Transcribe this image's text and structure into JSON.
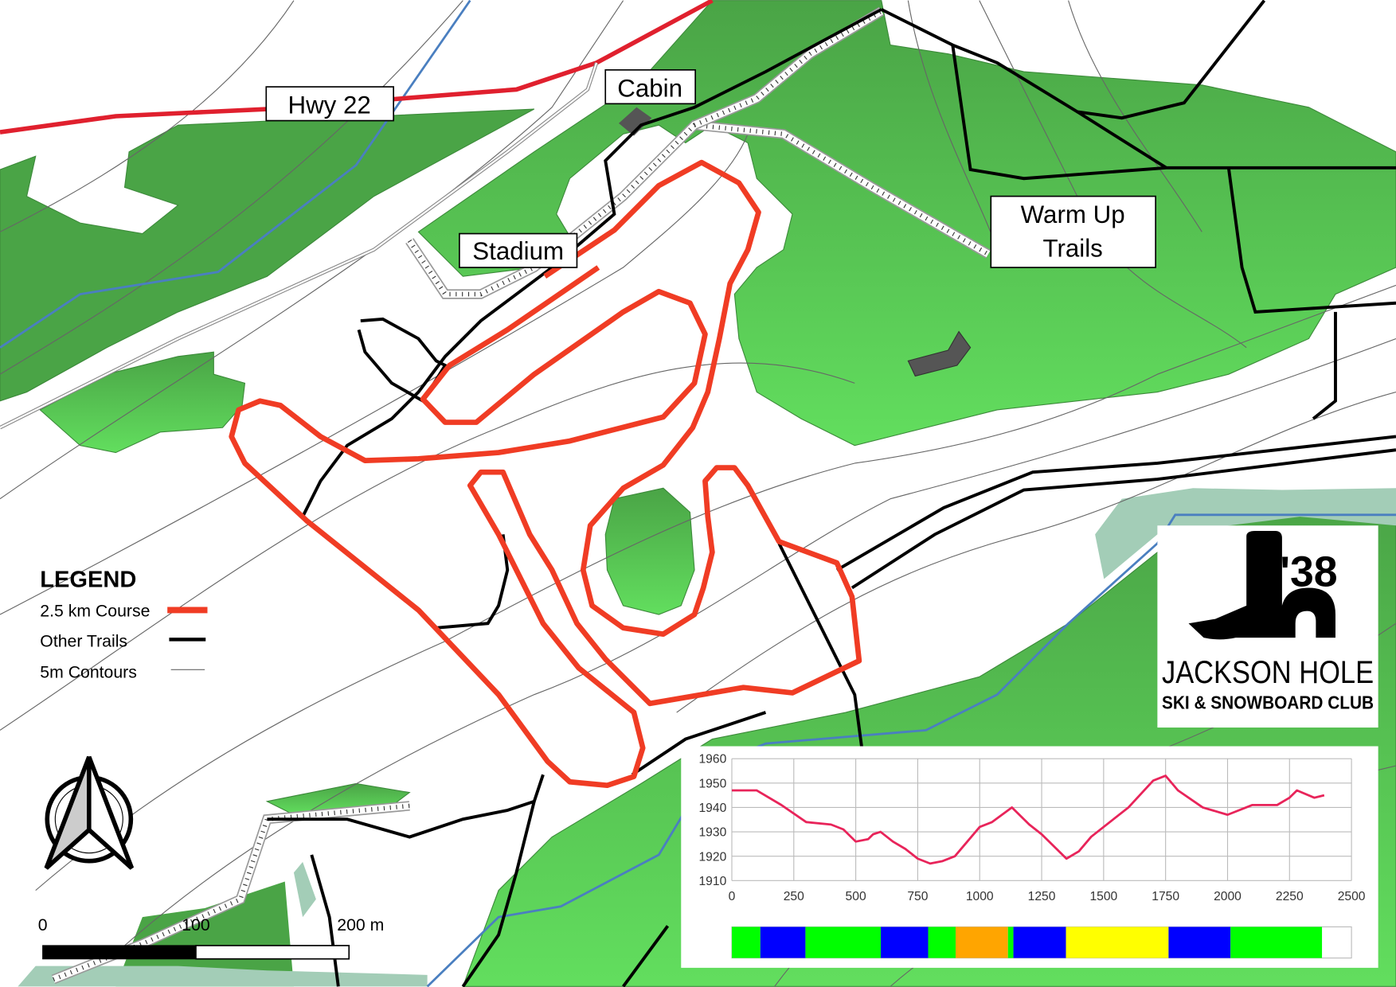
{
  "map": {
    "labels": {
      "hwy": "Hwy 22",
      "cabin": "Cabin",
      "stadium": "Stadium",
      "warmup_line1": "Warm Up",
      "warmup_line2": "Trails"
    },
    "colors": {
      "course": "#f03c24",
      "trails": "#000000",
      "contours": "#666666",
      "highway": "#e0202e",
      "stream": "#4a7fc0",
      "forest_dark": "#4aa446",
      "forest_light": "#5cd35a",
      "wetland": "#a3cdb7",
      "building": "#555555"
    }
  },
  "legend": {
    "title": "LEGEND",
    "items": [
      {
        "label": "2.5 km Course",
        "color": "#f03c24",
        "style": "thick"
      },
      {
        "label": "Other Trails",
        "color": "#000000",
        "style": "medium"
      },
      {
        "label": "5m Contours",
        "color": "#666666",
        "style": "thin"
      }
    ]
  },
  "scale_bar": {
    "ticks": [
      "0",
      "100",
      "200 m"
    ]
  },
  "north_arrow": {
    "icon": "north-arrow-icon"
  },
  "logo": {
    "year": "'38",
    "line1": "JACKSON HOLE",
    "line2": "SKI & SNOWBOARD CLUB"
  },
  "chart_data": {
    "type": "line",
    "xlim": [
      0,
      2500
    ],
    "ylim": [
      1910,
      1960
    ],
    "x_ticks": [
      "0",
      "250",
      "500",
      "750",
      "1000",
      "1250",
      "1500",
      "1750",
      "2000",
      "2250",
      "2500"
    ],
    "y_ticks": [
      "1960",
      "1950",
      "1940",
      "1930",
      "1920",
      "1910"
    ],
    "grid": true,
    "line_color": "#e8245a",
    "x": [
      0,
      100,
      200,
      300,
      400,
      450,
      500,
      550,
      570,
      600,
      650,
      700,
      750,
      800,
      850,
      900,
      1000,
      1050,
      1130,
      1200,
      1250,
      1350,
      1400,
      1450,
      1500,
      1600,
      1700,
      1750,
      1800,
      1900,
      2000,
      2100,
      2200,
      2250,
      2280,
      2350,
      2390
    ],
    "y": [
      1947,
      1947,
      1941,
      1934,
      1933,
      1931,
      1926,
      1927,
      1929,
      1930,
      1926,
      1923,
      1919,
      1917,
      1918,
      1920,
      1932,
      1934,
      1940,
      1933,
      1929,
      1919,
      1922,
      1928,
      1932,
      1940,
      1951,
      1953,
      1947,
      1940,
      1937,
      1941,
      1941,
      1944,
      1947,
      1944,
      1945
    ],
    "difficulty_bar": [
      {
        "from": 0,
        "to": 115,
        "color": "#00ff00"
      },
      {
        "from": 115,
        "to": 297,
        "color": "#0000ff"
      },
      {
        "from": 297,
        "to": 601,
        "color": "#00ff00"
      },
      {
        "from": 601,
        "to": 792,
        "color": "#0000ff"
      },
      {
        "from": 792,
        "to": 903,
        "color": "#00ff00"
      },
      {
        "from": 903,
        "to": 1114,
        "color": "#ffa500"
      },
      {
        "from": 1114,
        "to": 1136,
        "color": "#00ff00"
      },
      {
        "from": 1136,
        "to": 1348,
        "color": "#0000ff"
      },
      {
        "from": 1348,
        "to": 1762,
        "color": "#ffff00"
      },
      {
        "from": 1762,
        "to": 2012,
        "color": "#0000ff"
      },
      {
        "from": 2012,
        "to": 2381,
        "color": "#00ff00"
      }
    ]
  }
}
